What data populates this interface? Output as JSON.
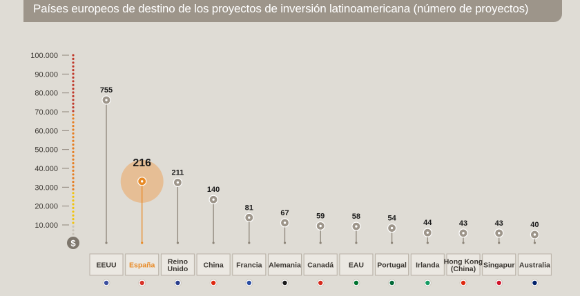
{
  "title": "Países europeos de destino de los proyectos de inversión latinoamericana (número de proyectos)",
  "colors": {
    "title_bar": "#9d958a",
    "background": "#dfdcd5",
    "stem": "#8c8478",
    "marker": "#9d958a",
    "highlight": "#e88a26",
    "highlight_halo": "#e8b98a",
    "label_box": "#ebe8e2",
    "label_border": "#b8b1a6",
    "axis_top": "#c0392b",
    "axis_mid": "#e67e22",
    "axis_bottom": "#f1c40f"
  },
  "chart_data": {
    "type": "lollipop",
    "title": "Países europeos de destino de los proyectos de inversión latinoamericana (número de proyectos)",
    "y_axis": {
      "ticks": [
        "100.000",
        "90.000",
        "80.000",
        "70.000",
        "60.000",
        "50.000",
        "40.000",
        "30.000",
        "20.000",
        "10.000"
      ],
      "tick_values": [
        100000,
        90000,
        80000,
        70000,
        60000,
        50000,
        40000,
        30000,
        20000,
        10000
      ],
      "icon": "$"
    },
    "categories": [
      "EEUU",
      "España",
      "Reino Unido",
      "China",
      "Francia",
      "Alemania",
      "Canadá",
      "EAU",
      "Portugal",
      "Irlanda",
      "Hong Kong (China)",
      "Singapur",
      "Australia"
    ],
    "label_lines": [
      [
        "EEUU"
      ],
      [
        "España"
      ],
      [
        "Reino",
        "Unido"
      ],
      [
        "China"
      ],
      [
        "Francia"
      ],
      [
        "Alemania"
      ],
      [
        "Canadá"
      ],
      [
        "EAU"
      ],
      [
        "Portugal"
      ],
      [
        "Irlanda"
      ],
      [
        "Hong Kong",
        "(China)"
      ],
      [
        "Singapur"
      ],
      [
        "Australia"
      ]
    ],
    "values": [
      755,
      216,
      211,
      140,
      81,
      67,
      59,
      58,
      54,
      44,
      43,
      43,
      40
    ],
    "highlight_index": 1,
    "flag_icons": [
      "flag-usa-icon",
      "flag-spain-icon",
      "flag-uk-icon",
      "flag-china-icon",
      "flag-france-icon",
      "flag-germany-icon",
      "flag-canada-icon",
      "flag-uae-icon",
      "flag-portugal-icon",
      "flag-ireland-icon",
      "flag-hongkong-icon",
      "flag-singapore-icon",
      "flag-australia-icon"
    ]
  }
}
